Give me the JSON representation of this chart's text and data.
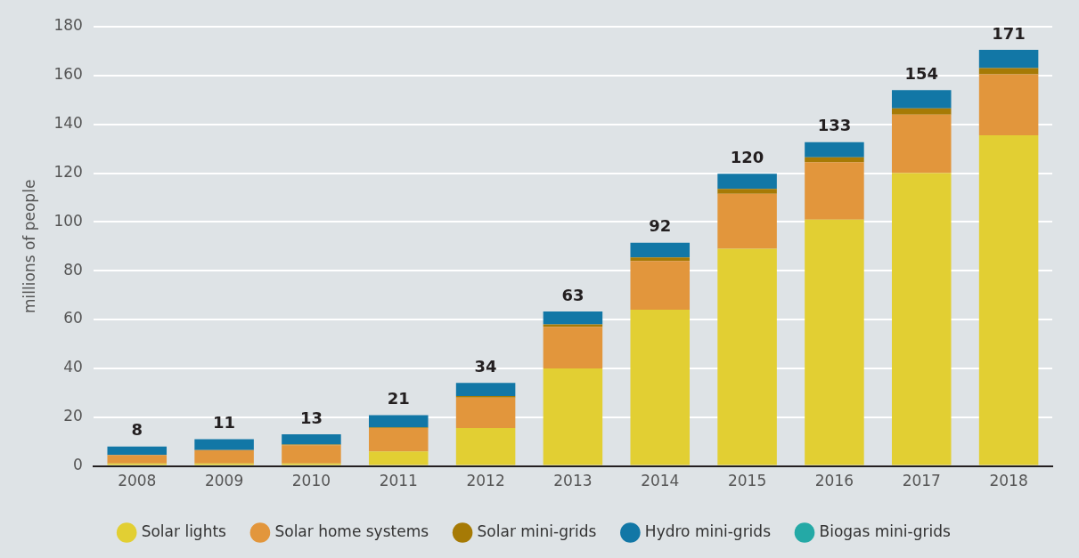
{
  "chart_data": {
    "type": "bar",
    "stacked": true,
    "ylabel": "millions of people",
    "categories": [
      "2008",
      "2009",
      "2010",
      "2011",
      "2012",
      "2013",
      "2014",
      "2015",
      "2016",
      "2017",
      "2018"
    ],
    "series": [
      {
        "name": "Solar lights",
        "color": "#e2cf33",
        "values": [
          1,
          1,
          1,
          6,
          15.5,
          40,
          64,
          89,
          101,
          120,
          135.5
        ]
      },
      {
        "name": "Solar home systems",
        "color": "#e2963c",
        "values": [
          3.5,
          5.5,
          7.5,
          9.5,
          12.5,
          17,
          20,
          22.5,
          23.5,
          24,
          25
        ]
      },
      {
        "name": "Solar mini-grids",
        "color": "#a67a05",
        "values": [
          0,
          0,
          0.3,
          0.3,
          0.7,
          1,
          1.5,
          2,
          2,
          2.5,
          2.5
        ]
      },
      {
        "name": "Hydro mini-grids",
        "color": "#1277a6",
        "values": [
          3.5,
          4.5,
          4.2,
          5,
          5.3,
          5.3,
          6,
          6.2,
          6.2,
          7.5,
          7.5
        ]
      },
      {
        "name": "Biogas mini-grids",
        "color": "#24a9a6",
        "values": [
          null,
          null,
          null,
          null,
          null,
          null,
          null,
          null,
          null,
          null,
          null
        ]
      }
    ],
    "totals": [
      "8",
      "11",
      "13",
      "21",
      "34",
      "63",
      "92",
      "120",
      "133",
      "154",
      "171"
    ],
    "ylim": [
      0,
      180
    ],
    "yticks": [
      0,
      20,
      40,
      60,
      80,
      100,
      120,
      140,
      160,
      180
    ],
    "grid": "y",
    "legend": "bottom"
  }
}
